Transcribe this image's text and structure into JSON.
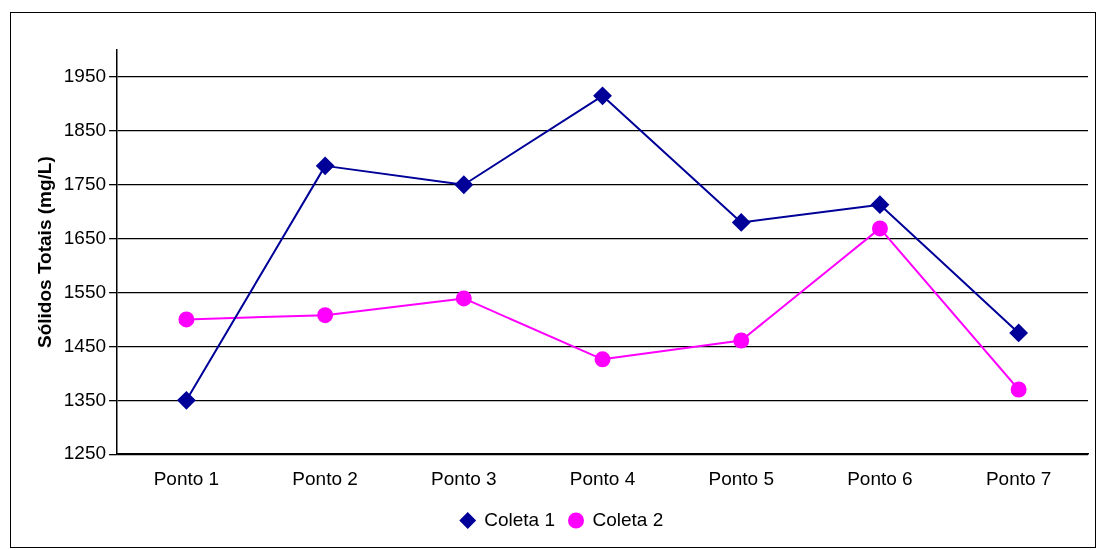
{
  "chart_data": {
    "type": "line",
    "ylabel": "Sólidos Totais (mg/L)",
    "categories": [
      "Ponto 1",
      "Ponto 2",
      "Ponto 3",
      "Ponto 4",
      "Ponto 5",
      "Ponto 6",
      "Ponto 7"
    ],
    "series": [
      {
        "name": "Coleta 1",
        "color": "#000099",
        "marker": "diamond",
        "values": [
          1350,
          1785,
          1750,
          1915,
          1680,
          1713,
          1475
        ]
      },
      {
        "name": "Coleta 2",
        "color": "#ff00ff",
        "marker": "circle",
        "values": [
          1500,
          1508,
          1539,
          1426,
          1461,
          1669,
          1370
        ]
      }
    ],
    "ylim": [
      1250,
      2000
    ],
    "yticks": [
      1250,
      1350,
      1450,
      1550,
      1650,
      1750,
      1850,
      1950
    ],
    "grid": "y",
    "legend": "bottom",
    "line_style": "solid"
  }
}
